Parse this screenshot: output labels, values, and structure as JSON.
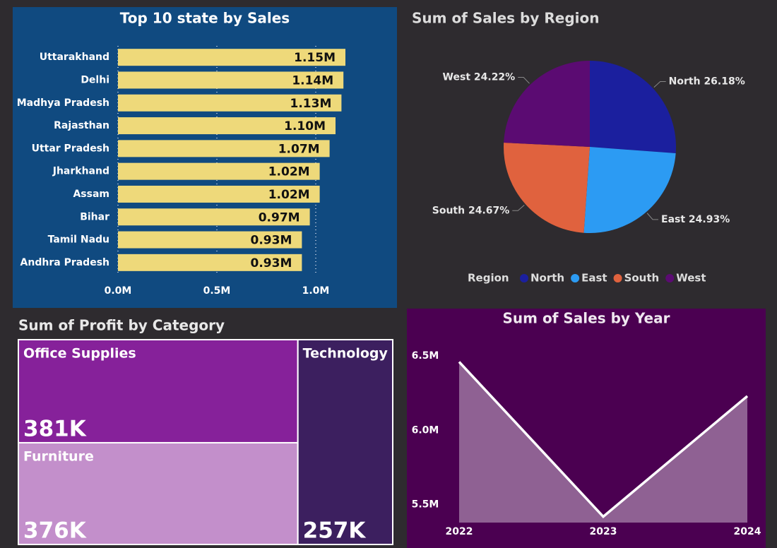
{
  "chart_data": [
    {
      "type": "bar",
      "orientation": "horizontal",
      "title": "Top 10 state by Sales",
      "categories": [
        "Uttarakhand",
        "Delhi",
        "Madhya Pradesh",
        "Rajasthan",
        "Uttar Pradesh",
        "Jharkhand",
        "Assam",
        "Bihar",
        "Tamil Nadu",
        "Andhra Pradesh"
      ],
      "values": [
        1150000,
        1140000,
        1130000,
        1100000,
        1070000,
        1020000,
        1020000,
        970000,
        930000,
        930000
      ],
      "value_labels": [
        "1.15M",
        "1.14M",
        "1.13M",
        "1.10M",
        "1.07M",
        "1.02M",
        "1.02M",
        "0.97M",
        "0.93M",
        "0.93M"
      ],
      "color": "#eed97a",
      "xlim": [
        0,
        1350000
      ],
      "xticks": [
        {
          "value": 0,
          "label": "0.0M"
        },
        {
          "value": 500000,
          "label": "0.5M"
        },
        {
          "value": 1000000,
          "label": "1.0M"
        }
      ],
      "grid": true
    },
    {
      "type": "pie",
      "title": "Sum of Sales by Region",
      "categories": [
        "North",
        "East",
        "South",
        "West"
      ],
      "values": [
        26.18,
        24.93,
        24.67,
        24.22
      ],
      "value_labels": [
        "26.18%",
        "24.93%",
        "24.67%",
        "24.22%"
      ],
      "colors": [
        "#1b1f9e",
        "#2c9bf3",
        "#e0623e",
        "#5b0b72"
      ],
      "legend_title": "Region",
      "legend": "bottom"
    },
    {
      "type": "treemap",
      "title": "Sum of Profit by Category",
      "categories": [
        "Office Supplies",
        "Furniture",
        "Technology"
      ],
      "values": [
        381000,
        376000,
        257000
      ],
      "value_labels": [
        "381K",
        "376K",
        "257K"
      ],
      "colors": [
        "#86219a",
        "#c38fcb",
        "#3c1f5f"
      ]
    },
    {
      "type": "area",
      "title": "Sum of Sales by Year",
      "categories": [
        "2022",
        "2023",
        "2024"
      ],
      "values": [
        6460000,
        5420000,
        6230000
      ],
      "color": "#ffffff",
      "ylim": [
        5380000,
        6600000
      ],
      "yticks": [
        {
          "value": 5500000,
          "label": "5.5M"
        },
        {
          "value": 6000000,
          "label": "6.0M"
        },
        {
          "value": 6500000,
          "label": "6.5M"
        }
      ]
    }
  ]
}
